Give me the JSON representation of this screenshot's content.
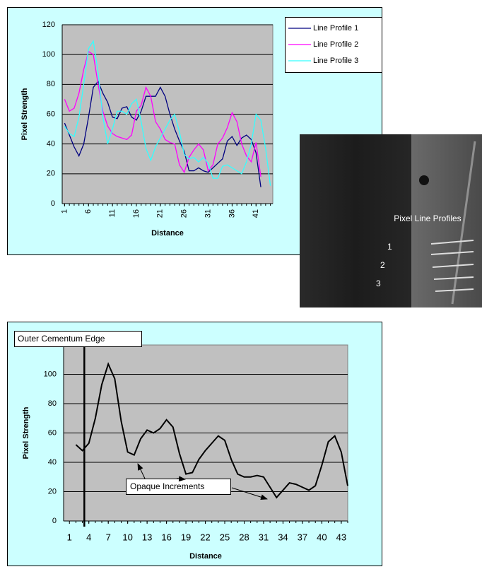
{
  "chart_data": [
    {
      "type": "line",
      "x_label": "Distance",
      "y_label": "Pixel Strength",
      "x": [
        1,
        2,
        3,
        4,
        5,
        6,
        7,
        8,
        9,
        10,
        11,
        12,
        13,
        14,
        15,
        16,
        17,
        18,
        19,
        20,
        21,
        22,
        23,
        24,
        25,
        26,
        27,
        28,
        29,
        30,
        31,
        32,
        33,
        34,
        35,
        36,
        37,
        38,
        39,
        40,
        41,
        42,
        43,
        44
      ],
      "xlim": [
        0.5,
        44.5
      ],
      "xticks": [
        1,
        6,
        11,
        16,
        21,
        26,
        31,
        36,
        41
      ],
      "ylim": [
        0,
        120
      ],
      "yticks": [
        0,
        20,
        40,
        60,
        80,
        100,
        120
      ],
      "grid": true,
      "legend": "right",
      "series": [
        {
          "name": "Line Profile 1",
          "color": "#000080",
          "values": [
            54,
            46,
            38,
            32,
            40,
            58,
            78,
            82,
            74,
            68,
            58,
            57,
            64,
            65,
            58,
            56,
            62,
            72,
            72,
            72,
            78,
            72,
            60,
            50,
            42,
            35,
            22,
            22,
            24,
            22,
            21,
            24,
            27,
            30,
            42,
            45,
            39,
            44,
            46,
            43,
            34,
            11,
            null,
            null
          ]
        },
        {
          "name": "Line Profile 2",
          "color": "#ff00ff",
          "values": [
            70,
            62,
            64,
            74,
            90,
            102,
            100,
            80,
            62,
            52,
            47,
            45,
            44,
            43,
            46,
            62,
            66,
            78,
            72,
            55,
            50,
            43,
            41,
            40,
            26,
            21,
            31,
            36,
            40,
            36,
            22,
            26,
            40,
            44,
            51,
            61,
            55,
            40,
            32,
            28,
            41,
            18,
            null,
            null
          ]
        },
        {
          "name": "Line Profile 3",
          "color": "#33ffff",
          "values": [
            52,
            47,
            45,
            58,
            80,
            104,
            109,
            88,
            58,
            40,
            50,
            62,
            62,
            60,
            67,
            70,
            55,
            37,
            29,
            38,
            44,
            50,
            56,
            60,
            48,
            33,
            30,
            31,
            28,
            31,
            27,
            17,
            17,
            25,
            26,
            24,
            22,
            20,
            28,
            40,
            60,
            56,
            37,
            12
          ]
        }
      ]
    },
    {
      "type": "line",
      "x_label": "Distance",
      "y_label": "Pixel Strength",
      "x": [
        2,
        3,
        4,
        5,
        6,
        7,
        8,
        9,
        10,
        11,
        12,
        13,
        14,
        15,
        16,
        17,
        18,
        19,
        20,
        21,
        22,
        23,
        24,
        25,
        26,
        27,
        28,
        29,
        30,
        31,
        32,
        33,
        34,
        35,
        36,
        37,
        38,
        39,
        40,
        41,
        42,
        43,
        44
      ],
      "xlim": [
        0.1,
        44
      ],
      "xticks": [
        1,
        4,
        7,
        10,
        13,
        16,
        19,
        22,
        25,
        28,
        31,
        34,
        37,
        40,
        43
      ],
      "ylim": [
        0,
        120
      ],
      "yticks": [
        0,
        20,
        40,
        60,
        80,
        100
      ],
      "grid": true,
      "series": [
        {
          "color": "#000000",
          "values": [
            52,
            48,
            53,
            70,
            93,
            107,
            97,
            68,
            47,
            45,
            56,
            62,
            60,
            63,
            69,
            64,
            46,
            32,
            33,
            42,
            48,
            53,
            58,
            55,
            42,
            32,
            30,
            30,
            31,
            30,
            23,
            16,
            21,
            26,
            25,
            23,
            21,
            24,
            38,
            54,
            58,
            47,
            24
          ]
        }
      ],
      "vline_x": 3.3,
      "annotations": [
        "Outer Cementum Edge",
        "Opaque Increments"
      ]
    }
  ],
  "image": {
    "caption": "Pixel Line Profiles",
    "labels": [
      "1",
      "2",
      "3"
    ]
  }
}
